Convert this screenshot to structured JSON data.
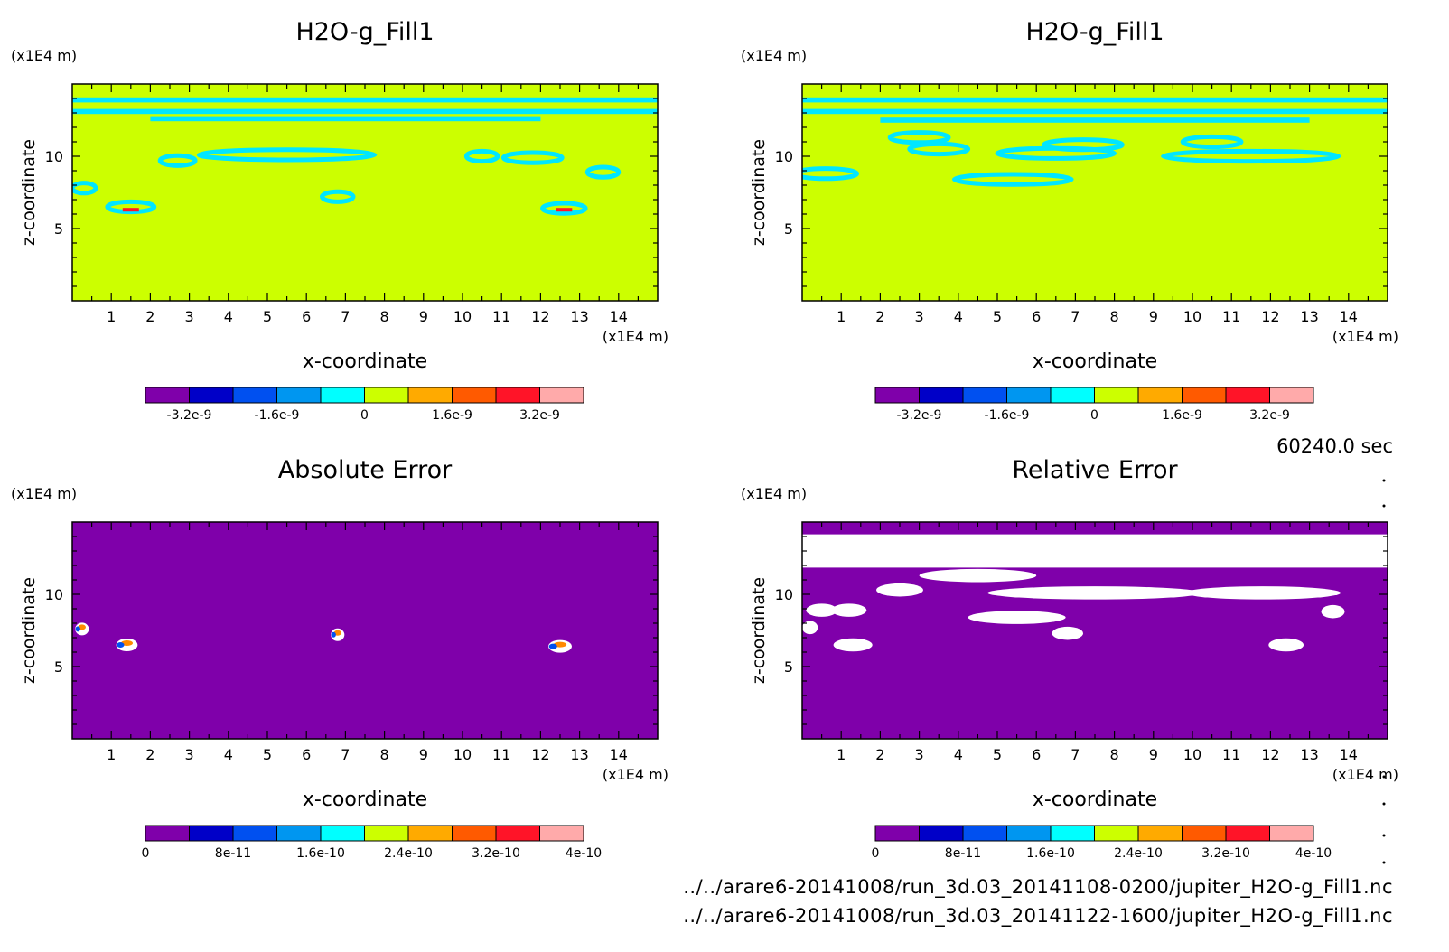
{
  "timestamp": "60240.0 sec",
  "files": [
    "../../arare6-20141008/run_3d.03_20141108-0200/jupiter_H2O-g_Fill1.nc",
    "../../arare6-20141008/run_3d.03_20141122-1600/jupiter_H2O-g_Fill1.nc"
  ],
  "palette": [
    "#7f00aa",
    "#0000c8",
    "#0050f0",
    "#0096f0",
    "#00ffff",
    "#ccff00",
    "#ffaa00",
    "#ff5a00",
    "#ff1428",
    "#ffaaaa"
  ],
  "colors": {
    "background_field": "#ccff00",
    "contour": "#00e6ff",
    "error_field": "#7f00aa",
    "missing": "#ffffff"
  },
  "chart_data": [
    {
      "type": "heatmap",
      "title": "H2O-g_Fill1",
      "xlabel": "x-coordinate",
      "ylabel": "z-coordinate",
      "x_unit": "(x1E4 m)",
      "z_unit": "(x1E4 m)",
      "xlim": [
        0,
        15
      ],
      "ylim": [
        0,
        15
      ],
      "xticks": [
        "1",
        "2",
        "3",
        "4",
        "5",
        "6",
        "7",
        "8",
        "9",
        "10",
        "11",
        "12",
        "13",
        "14"
      ],
      "yticks": [
        "5",
        "10"
      ],
      "colorbar": {
        "levels": 10,
        "tick_labels": [
          "-3.2e-9",
          "-1.6e-9",
          "0",
          "1.6e-9",
          "3.2e-9"
        ]
      },
      "features": [
        {
          "kind": "band",
          "z": 13.9,
          "x0": 0,
          "x1": 15
        },
        {
          "kind": "band",
          "z": 13.1,
          "x0": 0,
          "x1": 15
        },
        {
          "kind": "band",
          "z": 12.6,
          "x0": 2,
          "x1": 12
        },
        {
          "kind": "cell",
          "x": 2.7,
          "z": 9.7,
          "w": 0.9
        },
        {
          "kind": "cell",
          "x": 5.5,
          "z": 10.1,
          "w": 4.5
        },
        {
          "kind": "cell",
          "x": 10.5,
          "z": 10.0,
          "w": 0.8
        },
        {
          "kind": "cell",
          "x": 11.8,
          "z": 9.9,
          "w": 1.5
        },
        {
          "kind": "cell",
          "x": 13.6,
          "z": 8.9,
          "w": 0.8
        },
        {
          "kind": "cell",
          "x": 0.3,
          "z": 7.8,
          "w": 0.6
        },
        {
          "kind": "cell",
          "x": 6.8,
          "z": 7.2,
          "w": 0.8
        },
        {
          "kind": "cell",
          "x": 1.5,
          "z": 6.5,
          "w": 1.2
        },
        {
          "kind": "cell",
          "x": 12.6,
          "z": 6.4,
          "w": 1.1
        }
      ]
    },
    {
      "type": "heatmap",
      "title": "H2O-g_Fill1",
      "xlabel": "x-coordinate",
      "ylabel": "z-coordinate",
      "x_unit": "(x1E4 m)",
      "z_unit": "(x1E4 m)",
      "xlim": [
        0,
        15
      ],
      "ylim": [
        0,
        15
      ],
      "xticks": [
        "1",
        "2",
        "3",
        "4",
        "5",
        "6",
        "7",
        "8",
        "9",
        "10",
        "11",
        "12",
        "13",
        "14"
      ],
      "yticks": [
        "5",
        "10"
      ],
      "colorbar": {
        "levels": 10,
        "tick_labels": [
          "-3.2e-9",
          "-1.6e-9",
          "0",
          "1.6e-9",
          "3.2e-9"
        ]
      },
      "features": [
        {
          "kind": "band",
          "z": 13.9,
          "x0": 0,
          "x1": 15
        },
        {
          "kind": "band",
          "z": 13.1,
          "x0": 0,
          "x1": 15
        },
        {
          "kind": "band",
          "z": 12.5,
          "x0": 2,
          "x1": 13
        },
        {
          "kind": "cell",
          "x": 3.0,
          "z": 11.3,
          "w": 1.5
        },
        {
          "kind": "cell",
          "x": 3.5,
          "z": 10.5,
          "w": 1.5
        },
        {
          "kind": "cell",
          "x": 7.2,
          "z": 10.8,
          "w": 2.0
        },
        {
          "kind": "cell",
          "x": 10.5,
          "z": 11.0,
          "w": 1.5
        },
        {
          "kind": "cell",
          "x": 6.5,
          "z": 10.2,
          "w": 3.0
        },
        {
          "kind": "cell",
          "x": 11.5,
          "z": 10.0,
          "w": 4.5
        },
        {
          "kind": "cell",
          "x": 0.6,
          "z": 8.8,
          "w": 1.6
        },
        {
          "kind": "cell",
          "x": 5.4,
          "z": 8.4,
          "w": 3.0
        }
      ]
    },
    {
      "type": "heatmap",
      "title": "Absolute Error",
      "xlabel": "x-coordinate",
      "ylabel": "z-coordinate",
      "x_unit": "(x1E4 m)",
      "z_unit": "(x1E4 m)",
      "xlim": [
        0,
        15
      ],
      "ylim": [
        0,
        15
      ],
      "xticks": [
        "1",
        "2",
        "3",
        "4",
        "5",
        "6",
        "7",
        "8",
        "9",
        "10",
        "11",
        "12",
        "13",
        "14"
      ],
      "yticks": [
        "5",
        "10"
      ],
      "colorbar": {
        "levels": 10,
        "tick_labels": [
          "0",
          "8e-11",
          "1.6e-10",
          "2.4e-10",
          "3.2e-10",
          "4e-10"
        ]
      },
      "features": [
        {
          "kind": "spot",
          "x": 0.25,
          "z": 7.6,
          "w": 0.35
        },
        {
          "kind": "spot",
          "x": 1.4,
          "z": 6.5,
          "w": 0.55
        },
        {
          "kind": "spot",
          "x": 6.8,
          "z": 7.2,
          "w": 0.35
        },
        {
          "kind": "spot",
          "x": 12.5,
          "z": 6.4,
          "w": 0.6
        }
      ]
    },
    {
      "type": "heatmap",
      "title": "Relative Error",
      "xlabel": "x-coordinate",
      "ylabel": "z-coordinate",
      "x_unit": "(x1E4 m)",
      "z_unit": "(x1E4 m)",
      "xlim": [
        0,
        15
      ],
      "ylim": [
        0,
        15
      ],
      "xticks": [
        "1",
        "2",
        "3",
        "4",
        "5",
        "6",
        "7",
        "8",
        "9",
        "10",
        "11",
        "12",
        "13",
        "14"
      ],
      "yticks": [
        "5",
        "10"
      ],
      "colorbar": {
        "levels": 10,
        "tick_labels": [
          "0",
          "8e-11",
          "1.6e-10",
          "2.4e-10",
          "3.2e-10",
          "4e-10"
        ]
      },
      "features": [
        {
          "kind": "band",
          "z": 13.0,
          "x0": 0,
          "x1": 15,
          "h": 2.3
        },
        {
          "kind": "cell",
          "x": 4.5,
          "z": 11.3,
          "w": 3.0
        },
        {
          "kind": "cell",
          "x": 7.5,
          "z": 10.1,
          "w": 5.5
        },
        {
          "kind": "cell",
          "x": 11.8,
          "z": 10.1,
          "w": 4.0
        },
        {
          "kind": "cell",
          "x": 2.5,
          "z": 10.3,
          "w": 1.2
        },
        {
          "kind": "cell",
          "x": 0.5,
          "z": 8.9,
          "w": 0.8
        },
        {
          "kind": "cell",
          "x": 1.2,
          "z": 8.9,
          "w": 0.9
        },
        {
          "kind": "cell",
          "x": 5.5,
          "z": 8.4,
          "w": 2.5
        },
        {
          "kind": "cell",
          "x": 1.3,
          "z": 6.5,
          "w": 1.0
        },
        {
          "kind": "cell",
          "x": 6.8,
          "z": 7.3,
          "w": 0.8
        },
        {
          "kind": "cell",
          "x": 12.4,
          "z": 6.5,
          "w": 0.9
        },
        {
          "kind": "cell",
          "x": 13.6,
          "z": 8.8,
          "w": 0.6
        },
        {
          "kind": "cell",
          "x": 0.2,
          "z": 7.7,
          "w": 0.4
        }
      ]
    }
  ]
}
